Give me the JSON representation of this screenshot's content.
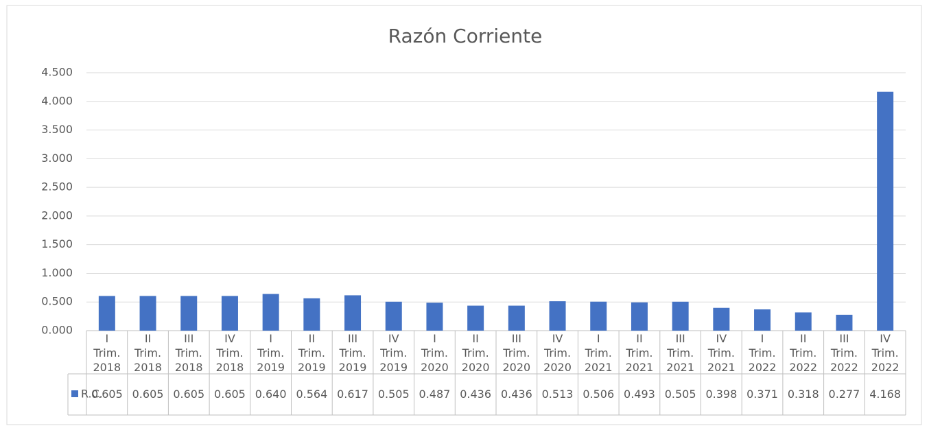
{
  "chart_data": {
    "type": "bar",
    "title": "Razón Corriente",
    "categories": [
      "I\nTrim.\n2018",
      "II\nTrim.\n2018",
      "III\nTrim.\n2018",
      "IV\nTrim.\n2018",
      "I\nTrim.\n2019",
      "II\nTrim.\n2019",
      "III\nTrim.\n2019",
      "IV\nTrim.\n2019",
      "I\nTrim.\n2020",
      "II\nTrim.\n2020",
      "III\nTrim.\n2020",
      "IV\nTrim.\n2020",
      "I\nTrim.\n2021",
      "II\nTrim.\n2021",
      "III\nTrim.\n2021",
      "IV\nTrim.\n2021",
      "I\nTrim.\n2022",
      "II\nTrim.\n2022",
      "III\nTrim.\n2022",
      "IV\nTrim.\n2022"
    ],
    "series": [
      {
        "name": "R.C.",
        "color": "#4472c4",
        "values": [
          0.605,
          0.605,
          0.605,
          0.605,
          0.64,
          0.564,
          0.617,
          0.505,
          0.487,
          0.436,
          0.436,
          0.513,
          0.506,
          0.493,
          0.505,
          0.398,
          0.371,
          0.318,
          0.277,
          4.168
        ],
        "value_labels": [
          "0.605",
          "0.605",
          "0.605",
          "0.605",
          "0.640",
          "0.564",
          "0.617",
          "0.505",
          "0.487",
          "0.436",
          "0.436",
          "0.513",
          "0.506",
          "0.493",
          "0.505",
          "0.398",
          "0.371",
          "0.318",
          "0.277",
          "4.168"
        ]
      }
    ],
    "ylim": [
      0,
      4.5
    ],
    "yticks": [
      {
        "value": 0,
        "label": "0.000"
      },
      {
        "value": 0.5,
        "label": "0.500"
      },
      {
        "value": 1,
        "label": "1.000"
      },
      {
        "value": 1.5,
        "label": "1.500"
      },
      {
        "value": 2,
        "label": "2.000"
      },
      {
        "value": 2.5,
        "label": "2.500"
      },
      {
        "value": 3,
        "label": "3.000"
      },
      {
        "value": 3.5,
        "label": "3.500"
      },
      {
        "value": 4,
        "label": "4.000"
      },
      {
        "value": 4.5,
        "label": "4.500"
      }
    ],
    "grid": true,
    "data_table": true
  }
}
